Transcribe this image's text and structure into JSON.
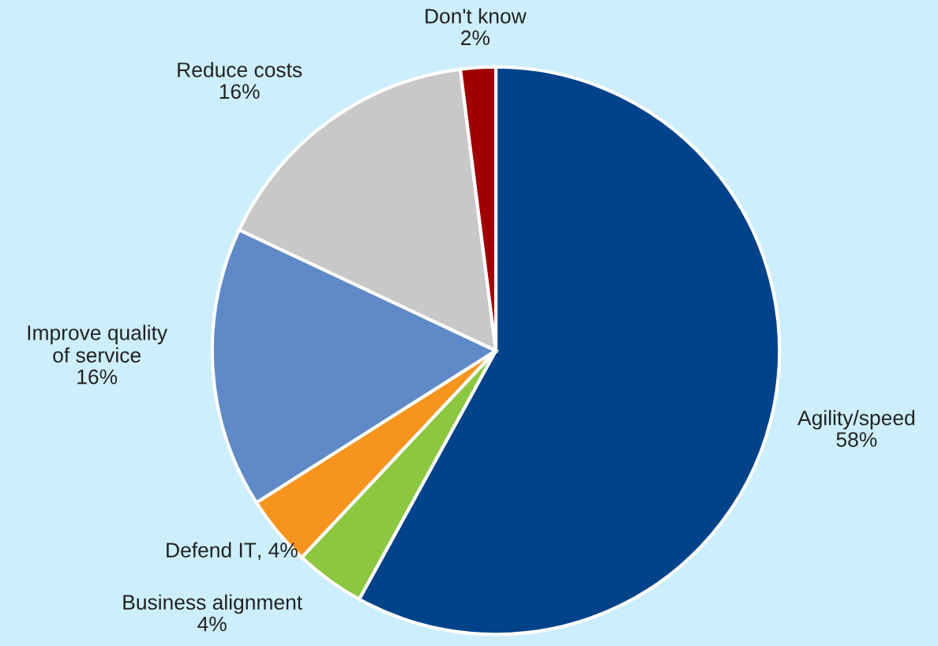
{
  "chart_data": {
    "type": "pie",
    "categories": [
      "Agility/speed",
      "Business alignment",
      "Defend IT",
      "Improve quality\nof service",
      "Reduce costs",
      "Don't know"
    ],
    "values": [
      58,
      4,
      4,
      16,
      16,
      2
    ],
    "value_labels": [
      "58%",
      "4%",
      ", 4%",
      "16%",
      "16%",
      "2%"
    ],
    "colors": [
      "#00438a",
      "#8dc63f",
      "#f7941d",
      "#5f8ac7",
      "#c8c8c8",
      "#a00000"
    ],
    "legend": false
  }
}
